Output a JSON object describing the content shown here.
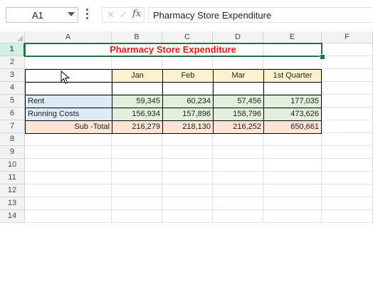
{
  "formula_bar": {
    "name_box": "A1",
    "fx_label": "fx",
    "content": "Pharmacy Store Expenditure"
  },
  "columns": [
    "A",
    "B",
    "C",
    "D",
    "E",
    "F"
  ],
  "rows": [
    "1",
    "2",
    "3",
    "4",
    "5",
    "6",
    "7",
    "8",
    "9",
    "10",
    "11",
    "12",
    "13",
    "14"
  ],
  "sheet": {
    "title": "Pharmacy Store Expenditure",
    "headers": [
      "Jan",
      "Feb",
      "Mar",
      "1st Quarter"
    ],
    "data_rows": [
      {
        "label": "Rent",
        "values": [
          "59,345",
          "60,234",
          "57,456",
          "177,035"
        ]
      },
      {
        "label": "Running Costs",
        "values": [
          "156,934",
          "157,896",
          "158,796",
          "473,626"
        ]
      },
      {
        "label": "Sub -Total",
        "values": [
          "216,279",
          "218,130",
          "216,252",
          "650,661"
        ]
      }
    ]
  },
  "colors": {
    "title_text": "#e01b1b",
    "header_fill": "#fff2cc",
    "label_fill": "#ddebf7",
    "value_fill": "#e2efda",
    "subtotal_fill": "#fce4d6",
    "selection": "#217346"
  }
}
